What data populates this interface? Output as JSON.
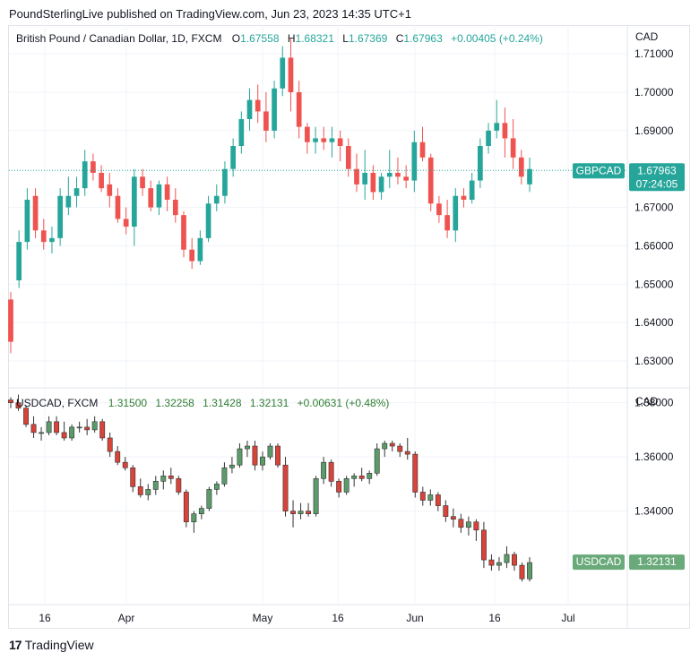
{
  "publish_line": "PoundSterlingLive published on TradingView.com, Jun 23, 2023 14:35 UTC+1",
  "footer": {
    "logo_mark": "17",
    "brand": "TradingView"
  },
  "colors": {
    "up": "#26a69a",
    "down": "#ef5350",
    "up2": "#5b9b6a",
    "down2": "#d8433a",
    "grid": "#f0f3fa",
    "badge2": "#6aaa7a"
  },
  "chart_data": [
    {
      "type": "candlestick",
      "title": "British Pound / Canadian Dollar, 1D, FXCM",
      "ohlc_legend": {
        "o_label": "O",
        "o": "1.67558",
        "h_label": "H",
        "h": "1.68321",
        "l_label": "L",
        "l": "1.67369",
        "c_label": "C",
        "c": "1.67963",
        "change": "+0.00405 (+0.24%)"
      },
      "currency": "CAD",
      "ylim": [
        1.623,
        1.7175
      ],
      "yticks": [
        "1.71000",
        "1.70000",
        "1.69000",
        "1.67000",
        "1.66000",
        "1.65000",
        "1.64000",
        "1.63000"
      ],
      "ytick_values": [
        1.71,
        1.7,
        1.69,
        1.67,
        1.66,
        1.65,
        1.64,
        1.63
      ],
      "last_price": 1.67963,
      "badge_symbol": "GBPCAD",
      "badge_price": "1.67963",
      "badge_countdown": "07:24:05",
      "candles": [
        [
          1.646,
          1.648,
          1.632,
          1.635
        ],
        [
          1.651,
          1.664,
          1.649,
          1.661
        ],
        [
          1.661,
          1.675,
          1.659,
          1.672
        ],
        [
          1.673,
          1.675,
          1.662,
          1.664
        ],
        [
          1.664,
          1.667,
          1.659,
          1.661
        ],
        [
          1.661,
          1.665,
          1.658,
          1.662
        ],
        [
          1.662,
          1.675,
          1.66,
          1.673
        ],
        [
          1.67,
          1.678,
          1.668,
          1.673
        ],
        [
          1.673,
          1.678,
          1.67,
          1.675
        ],
        [
          1.675,
          1.685,
          1.673,
          1.682
        ],
        [
          1.682,
          1.684,
          1.677,
          1.679
        ],
        [
          1.679,
          1.681,
          1.674,
          1.675
        ],
        [
          1.676,
          1.679,
          1.67,
          1.673
        ],
        [
          1.673,
          1.675,
          1.666,
          1.667
        ],
        [
          1.667,
          1.67,
          1.663,
          1.665
        ],
        [
          1.665,
          1.68,
          1.66,
          1.678
        ],
        [
          1.678,
          1.68,
          1.673,
          1.675
        ],
        [
          1.675,
          1.677,
          1.669,
          1.67
        ],
        [
          1.67,
          1.677,
          1.668,
          1.676
        ],
        [
          1.676,
          1.678,
          1.669,
          1.672
        ],
        [
          1.672,
          1.675,
          1.666,
          1.668
        ],
        [
          1.668,
          1.669,
          1.657,
          1.659
        ],
        [
          1.659,
          1.662,
          1.654,
          1.656
        ],
        [
          1.656,
          1.664,
          1.655,
          1.662
        ],
        [
          1.662,
          1.673,
          1.661,
          1.671
        ],
        [
          1.671,
          1.676,
          1.669,
          1.673
        ],
        [
          1.673,
          1.682,
          1.671,
          1.68
        ],
        [
          1.68,
          1.688,
          1.678,
          1.686
        ],
        [
          1.686,
          1.695,
          1.684,
          1.693
        ],
        [
          1.693,
          1.701,
          1.69,
          1.698
        ],
        [
          1.698,
          1.702,
          1.692,
          1.695
        ],
        [
          1.695,
          1.7,
          1.687,
          1.69
        ],
        [
          1.69,
          1.703,
          1.688,
          1.701
        ],
        [
          1.701,
          1.712,
          1.699,
          1.709
        ],
        [
          1.709,
          1.714,
          1.695,
          1.7
        ],
        [
          1.7,
          1.703,
          1.688,
          1.691
        ],
        [
          1.691,
          1.692,
          1.684,
          1.687
        ],
        [
          1.687,
          1.691,
          1.684,
          1.688
        ],
        [
          1.688,
          1.691,
          1.685,
          1.687
        ],
        [
          1.687,
          1.691,
          1.683,
          1.688
        ],
        [
          1.688,
          1.69,
          1.682,
          1.686
        ],
        [
          1.686,
          1.688,
          1.678,
          1.68
        ],
        [
          1.68,
          1.684,
          1.674,
          1.676
        ],
        [
          1.676,
          1.685,
          1.672,
          1.679
        ],
        [
          1.679,
          1.681,
          1.672,
          1.674
        ],
        [
          1.674,
          1.679,
          1.672,
          1.678
        ],
        [
          1.678,
          1.685,
          1.675,
          1.679
        ],
        [
          1.679,
          1.683,
          1.676,
          1.678
        ],
        [
          1.678,
          1.681,
          1.675,
          1.677
        ],
        [
          1.677,
          1.69,
          1.674,
          1.687
        ],
        [
          1.687,
          1.691,
          1.682,
          1.683
        ],
        [
          1.683,
          1.684,
          1.669,
          1.671
        ],
        [
          1.671,
          1.673,
          1.666,
          1.668
        ],
        [
          1.668,
          1.672,
          1.662,
          1.664
        ],
        [
          1.664,
          1.675,
          1.661,
          1.673
        ],
        [
          1.673,
          1.675,
          1.67,
          1.672
        ],
        [
          1.672,
          1.679,
          1.671,
          1.677
        ],
        [
          1.677,
          1.688,
          1.675,
          1.686
        ],
        [
          1.686,
          1.692,
          1.684,
          1.69
        ],
        [
          1.69,
          1.698,
          1.688,
          1.692
        ],
        [
          1.692,
          1.696,
          1.683,
          1.688
        ],
        [
          1.688,
          1.693,
          1.68,
          1.683
        ],
        [
          1.683,
          1.685,
          1.676,
          1.678
        ],
        [
          1.676,
          1.683,
          1.674,
          1.68
        ]
      ]
    },
    {
      "type": "candlestick",
      "title": "USDCAD, FXCM",
      "ohlc_legend": {
        "o": "1.31500",
        "h": "1.32258",
        "l": "1.31428",
        "c": "1.32131",
        "change": "+0.00631 (+0.48%)"
      },
      "currency": "CAD",
      "ylim": [
        1.3055,
        1.3855
      ],
      "yticks": [
        "1.38000",
        "1.36000",
        "1.34000"
      ],
      "ytick_values": [
        1.38,
        1.36,
        1.34
      ],
      "last_price": 1.32131,
      "badge_symbol": "USDCAD",
      "badge_price": "1.32131",
      "xticks": [
        "16",
        "Apr",
        "May",
        "16",
        "Jun",
        "16",
        "Jul"
      ],
      "candles": [
        [
          1.381,
          1.382,
          1.378,
          1.38
        ],
        [
          1.38,
          1.383,
          1.377,
          1.378
        ],
        [
          1.378,
          1.379,
          1.371,
          1.372
        ],
        [
          1.372,
          1.375,
          1.367,
          1.369
        ],
        [
          1.369,
          1.371,
          1.366,
          1.369
        ],
        [
          1.369,
          1.375,
          1.368,
          1.373
        ],
        [
          1.373,
          1.375,
          1.368,
          1.369
        ],
        [
          1.369,
          1.373,
          1.366,
          1.367
        ],
        [
          1.367,
          1.372,
          1.366,
          1.371
        ],
        [
          1.371,
          1.373,
          1.369,
          1.371
        ],
        [
          1.371,
          1.374,
          1.368,
          1.37
        ],
        [
          1.37,
          1.375,
          1.369,
          1.373
        ],
        [
          1.373,
          1.374,
          1.366,
          1.367
        ],
        [
          1.367,
          1.369,
          1.36,
          1.362
        ],
        [
          1.362,
          1.364,
          1.357,
          1.358
        ],
        [
          1.358,
          1.36,
          1.355,
          1.356
        ],
        [
          1.356,
          1.357,
          1.347,
          1.349
        ],
        [
          1.349,
          1.352,
          1.345,
          1.346
        ],
        [
          1.346,
          1.35,
          1.344,
          1.348
        ],
        [
          1.348,
          1.353,
          1.346,
          1.351
        ],
        [
          1.351,
          1.355,
          1.348,
          1.353
        ],
        [
          1.353,
          1.356,
          1.35,
          1.352
        ],
        [
          1.352,
          1.353,
          1.346,
          1.347
        ],
        [
          1.347,
          1.348,
          1.334,
          1.336
        ],
        [
          1.336,
          1.34,
          1.332,
          1.339
        ],
        [
          1.339,
          1.342,
          1.337,
          1.341
        ],
        [
          1.341,
          1.349,
          1.34,
          1.348
        ],
        [
          1.348,
          1.351,
          1.346,
          1.35
        ],
        [
          1.35,
          1.358,
          1.349,
          1.356
        ],
        [
          1.356,
          1.36,
          1.354,
          1.357
        ],
        [
          1.357,
          1.365,
          1.356,
          1.363
        ],
        [
          1.363,
          1.366,
          1.36,
          1.364
        ],
        [
          1.364,
          1.366,
          1.355,
          1.357
        ],
        [
          1.357,
          1.362,
          1.355,
          1.36
        ],
        [
          1.36,
          1.365,
          1.359,
          1.364
        ],
        [
          1.364,
          1.365,
          1.356,
          1.357
        ],
        [
          1.357,
          1.36,
          1.338,
          1.34
        ],
        [
          1.34,
          1.344,
          1.334,
          1.339
        ],
        [
          1.339,
          1.343,
          1.337,
          1.34
        ],
        [
          1.34,
          1.343,
          1.338,
          1.339
        ],
        [
          1.339,
          1.353,
          1.338,
          1.352
        ],
        [
          1.352,
          1.36,
          1.35,
          1.358
        ],
        [
          1.358,
          1.359,
          1.349,
          1.351
        ],
        [
          1.351,
          1.352,
          1.345,
          1.347
        ],
        [
          1.347,
          1.353,
          1.346,
          1.352
        ],
        [
          1.352,
          1.354,
          1.349,
          1.353
        ],
        [
          1.353,
          1.356,
          1.351,
          1.352
        ],
        [
          1.352,
          1.355,
          1.35,
          1.354
        ],
        [
          1.354,
          1.365,
          1.353,
          1.363
        ],
        [
          1.363,
          1.366,
          1.36,
          1.365
        ],
        [
          1.365,
          1.366,
          1.362,
          1.364
        ],
        [
          1.364,
          1.365,
          1.36,
          1.362
        ],
        [
          1.362,
          1.367,
          1.359,
          1.361
        ],
        [
          1.361,
          1.362,
          1.345,
          1.347
        ],
        [
          1.347,
          1.349,
          1.342,
          1.344
        ],
        [
          1.344,
          1.348,
          1.342,
          1.346
        ],
        [
          1.346,
          1.347,
          1.34,
          1.342
        ],
        [
          1.342,
          1.344,
          1.336,
          1.338
        ],
        [
          1.338,
          1.341,
          1.334,
          1.337
        ],
        [
          1.337,
          1.339,
          1.332,
          1.334
        ],
        [
          1.334,
          1.338,
          1.331,
          1.336
        ],
        [
          1.336,
          1.337,
          1.329,
          1.333
        ],
        [
          1.333,
          1.336,
          1.319,
          1.322
        ],
        [
          1.322,
          1.324,
          1.318,
          1.32
        ],
        [
          1.32,
          1.323,
          1.318,
          1.321
        ],
        [
          1.321,
          1.327,
          1.319,
          1.324
        ],
        [
          1.324,
          1.325,
          1.318,
          1.32
        ],
        [
          1.32,
          1.321,
          1.314,
          1.315
        ],
        [
          1.315,
          1.323,
          1.314,
          1.321
        ]
      ]
    }
  ]
}
